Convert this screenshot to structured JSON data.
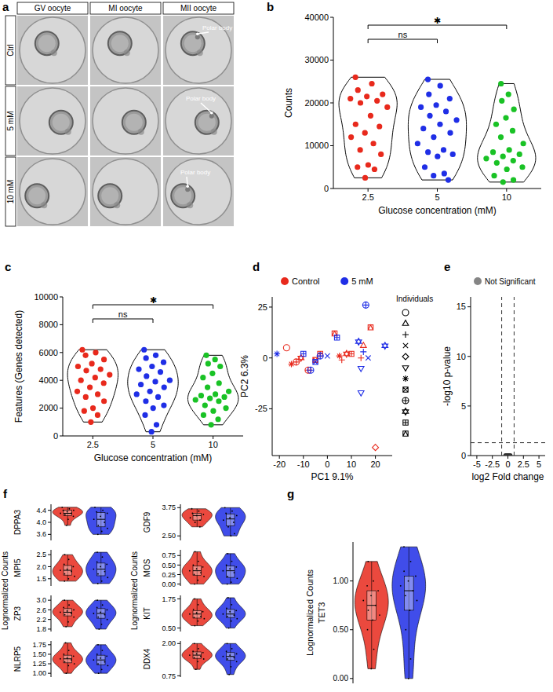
{
  "image_panel": {
    "title": "a",
    "columns": [
      "GV oocyte",
      "MI oocyte",
      "MII oocyte"
    ],
    "rows": [
      "Ctrl",
      "5 mM",
      "10 mM"
    ],
    "annotations": [
      "Polar body",
      "Polar body",
      "Polar body"
    ]
  },
  "chart_data": [
    {
      "type": "violin",
      "title": "b",
      "x_label": "Glucose concentration (mM)",
      "y_label": "Counts",
      "categories": [
        "2.5",
        "5",
        "10"
      ],
      "colors": [
        "#e8291c",
        "#1f2ee6",
        "#19c225"
      ],
      "values": [
        [
          26000,
          24500,
          23000,
          22000,
          21500,
          21000,
          20500,
          20000,
          19000,
          17000,
          15000,
          14500,
          13000,
          12000,
          10500,
          9000,
          8000,
          5500,
          5000,
          4500,
          2500
        ],
        [
          25500,
          24000,
          22000,
          21000,
          19500,
          19000,
          18000,
          17000,
          16000,
          15000,
          14000,
          13000,
          12000,
          10500,
          9000,
          8500,
          8000,
          7500,
          5000,
          3500,
          3000,
          2000
        ],
        [
          24500,
          22000,
          20500,
          18500,
          16500,
          15000,
          13500,
          12000,
          10500,
          9000,
          8500,
          8000,
          7500,
          7000,
          6500,
          6000,
          5000,
          4500,
          3000,
          2000,
          1500
        ]
      ],
      "ylim": [
        0,
        40000
      ],
      "yticks": [
        0,
        10000,
        20000,
        30000,
        40000
      ],
      "annotations": [
        {
          "text": "ns",
          "between": [
            "2.5",
            "5"
          ]
        },
        {
          "text": "✱",
          "between": [
            "2.5",
            "10"
          ]
        }
      ]
    },
    {
      "type": "violin",
      "title": "c",
      "x_label": "Glucose concentration (mM)",
      "y_label": "Features (Genes detected)",
      "categories": [
        "2.5",
        "5",
        "10"
      ],
      "colors": [
        "#e8291c",
        "#1f2ee6",
        "#19c225"
      ],
      "values": [
        [
          6200,
          6000,
          5800,
          5500,
          5200,
          5000,
          4800,
          4700,
          4400,
          4200,
          4000,
          3800,
          3500,
          3200,
          3000,
          2800,
          2500,
          2000,
          1800,
          1500,
          1000
        ],
        [
          6200,
          5800,
          5600,
          5300,
          5000,
          4800,
          4600,
          4300,
          4000,
          3900,
          3700,
          3500,
          3200,
          3000,
          2800,
          2500,
          2200,
          2000,
          1500,
          800,
          300
        ],
        [
          5800,
          5500,
          5200,
          5000,
          4500,
          4200,
          3800,
          3500,
          3200,
          3000,
          2900,
          2800,
          2700,
          2600,
          2500,
          2200,
          2000,
          1800,
          1500,
          1200,
          800
        ]
      ],
      "ylim": [
        0,
        10000
      ],
      "yticks": [
        0,
        2000,
        4000,
        6000,
        8000,
        10000
      ],
      "annotations": [
        {
          "text": "ns",
          "between": [
            "2.5",
            "5"
          ]
        },
        {
          "text": "✱",
          "between": [
            "2.5",
            "10"
          ]
        }
      ]
    },
    {
      "type": "scatter",
      "title": "d",
      "x_label": "PC1 9.1%",
      "y_label": "PC2 6.3%",
      "xlim": [
        -23,
        27
      ],
      "xticks": [
        -20,
        -10,
        0,
        10,
        20
      ],
      "ylim": [
        -48,
        30
      ],
      "yticks": [
        -25,
        0,
        25
      ],
      "legend": "top",
      "series": [
        {
          "name": "Control",
          "color": "#e8291c",
          "x": [
            -17,
            -15,
            -13,
            -11,
            -8,
            -5,
            -3,
            3,
            5,
            6,
            8,
            10,
            14,
            15,
            18,
            20
          ],
          "values": [
            5,
            -3,
            -2,
            0,
            -6,
            -1,
            2,
            12,
            1,
            -1,
            2,
            2,
            0,
            6,
            15,
            -44
          ],
          "markers": [
            "circle",
            "asterisk",
            "circle-plus",
            "star",
            "circle-plus",
            "square-cross",
            "square-plus",
            "square-triangle",
            "asterisk",
            "plus",
            "star",
            "square-plus",
            "plus",
            "triangle",
            "square-triangle",
            "diamond"
          ]
        },
        {
          "name": "5 mM",
          "color": "#1f2ee6",
          "x": [
            -21,
            -10,
            -7,
            -5,
            -3,
            0,
            4,
            13,
            14,
            14,
            15,
            16,
            17,
            24
          ],
          "values": [
            2,
            2,
            -6,
            -2,
            1,
            1,
            10,
            8,
            -5,
            -17,
            3,
            26,
            0,
            6
          ],
          "markers": [
            "asterisk",
            "square-plus",
            "circle-plus",
            "square-cross",
            "circle-plus",
            "cross",
            "square-plus",
            "star",
            "triangle-down",
            "triangle-down",
            "plus",
            "circle-plus",
            "cross",
            "star"
          ]
        }
      ],
      "individuals": {
        "title": "Individuals",
        "markers": [
          "circle",
          "triangle",
          "plus",
          "cross",
          "diamond",
          "triangle-down",
          "asterisk",
          "square-cross",
          "circle-plus",
          "star",
          "square-plus",
          "square-triangle"
        ]
      }
    },
    {
      "type": "scatter",
      "title": "e",
      "x_label": "log2 Fold change",
      "y_label": "-log10 p-value",
      "xlim": [
        -6,
        6
      ],
      "xticks": [
        -5,
        -2.5,
        0,
        2.5,
        5
      ],
      "ylim": [
        0,
        16
      ],
      "yticks": [
        0,
        5,
        10,
        15
      ],
      "legend": "top",
      "thresholds": {
        "x": [
          -1,
          1
        ],
        "y": 1.3
      },
      "series": [
        {
          "name": "Not Significant",
          "color": "#333333",
          "marker": "circle",
          "x": [
            -0.45,
            -0.38,
            -0.3,
            -0.22,
            -0.15,
            -0.08,
            0,
            0.08,
            0.15,
            0.22,
            0.3,
            0.38,
            0.45
          ],
          "values": [
            0.05,
            0.05,
            0.05,
            0.05,
            0.05,
            0.05,
            0.05,
            0.05,
            0.05,
            0.05,
            0.05,
            0.05,
            0.05
          ]
        }
      ]
    },
    {
      "type": "violin",
      "title": "f",
      "y_label": "DPPA3",
      "colors": [
        "#e8291c",
        "#1f2ee6"
      ],
      "values": [
        [
          4.5,
          4.45,
          4.4,
          4.4,
          4.35,
          4.3,
          4.3,
          4.25,
          4.2,
          4.1,
          3.9
        ],
        [
          4.5,
          4.4,
          4.35,
          4.3,
          4.2,
          4.1,
          4.0,
          3.9,
          3.8,
          3.7,
          3.6
        ]
      ],
      "ylim": [
        3.4,
        4.6
      ],
      "yticks": [
        3.6,
        {
          "value": 4,
          "label": "4.0"
        },
        4.4
      ]
    },
    {
      "type": "violin",
      "y_label": "GDF9",
      "colors": [
        "#e8291c",
        "#1f2ee6"
      ],
      "values": [
        [
          3.7,
          3.6,
          3.5,
          3.45,
          3.4,
          3.3,
          3.2,
          3.1,
          2.9
        ],
        [
          3.75,
          3.6,
          3.5,
          3.4,
          3.3,
          3.2,
          3.1,
          2.9,
          2.6,
          2.5
        ]
      ],
      "ylim": [
        2.3,
        3.9
      ],
      "yticks": [
        {
          "value": 2.5,
          "label": "2.50"
        },
        3.75
      ]
    },
    {
      "type": "violin",
      "y_label": "MPI5",
      "y_label_outer": "Lognormalized Counts",
      "colors": [
        "#e8291c",
        "#1f2ee6"
      ],
      "values": [
        [
          2.5,
          2.3,
          2.1,
          2.0,
          1.9,
          1.85,
          1.8,
          1.7,
          1.6,
          1.5,
          1.4
        ],
        [
          2.6,
          2.4,
          2.2,
          2.1,
          2.0,
          1.9,
          1.8,
          1.7,
          1.55,
          1.4,
          1.3
        ]
      ],
      "ylim": [
        1.2,
        2.7
      ],
      "yticks": [
        1.5,
        {
          "value": 2,
          "label": "2.0"
        },
        2.5
      ]
    },
    {
      "type": "violin",
      "y_label": "MOS",
      "y_label_outer": "Lognormalized Counts",
      "colors": [
        "#e8291c",
        "#1f2ee6"
      ],
      "values": [
        [
          0.85,
          0.6,
          0.5,
          0.45,
          0.4,
          0.35,
          0.3,
          0.25,
          0.2,
          0.1,
          0.0
        ],
        [
          0.8,
          0.6,
          0.5,
          0.45,
          0.4,
          0.35,
          0.3,
          0.2,
          0.15,
          0.05,
          0.0
        ]
      ],
      "ylim": [
        -0.05,
        0.9
      ],
      "yticks": [
        {
          "value": 0,
          "label": "0.00"
        },
        0.25,
        {
          "value": 0.5,
          "label": "0.50"
        },
        0.75
      ]
    },
    {
      "type": "violin",
      "y_label": "ZP3",
      "colors": [
        "#e8291c",
        "#1f2ee6"
      ],
      "values": [
        [
          3.0,
          2.8,
          2.7,
          2.6,
          2.55,
          2.5,
          2.45,
          2.4,
          2.3,
          2.1,
          1.9
        ],
        [
          3.0,
          2.8,
          2.7,
          2.6,
          2.5,
          2.45,
          2.4,
          2.3,
          2.2,
          2.0,
          1.8
        ]
      ],
      "ylim": [
        1.7,
        3.2
      ],
      "yticks": [
        1.8,
        2.2,
        2.6,
        {
          "value": 3,
          "label": "3.0"
        }
      ]
    },
    {
      "type": "violin",
      "y_label": "KIT",
      "colors": [
        "#e8291c",
        "#1f2ee6"
      ],
      "values": [
        [
          1.75,
          1.5,
          1.3,
          1.2,
          1.15,
          1.1,
          1.0,
          0.95,
          0.9,
          0.8,
          0.6
        ],
        [
          1.8,
          1.5,
          1.35,
          1.25,
          1.2,
          1.1,
          1.05,
          1.0,
          0.9,
          0.8,
          0.5
        ]
      ],
      "ylim": [
        0.35,
        1.9
      ],
      "yticks": [
        {
          "value": 0.5,
          "label": "0.50"
        },
        1.75
      ]
    },
    {
      "type": "violin",
      "y_label": "NLRP5",
      "colors": [
        "#e8291c",
        "#1f2ee6"
      ],
      "values": [
        [
          1.8,
          1.6,
          1.5,
          1.45,
          1.4,
          1.38,
          1.35,
          1.3,
          1.25,
          1.2,
          1.0
        ],
        [
          1.75,
          1.6,
          1.5,
          1.45,
          1.4,
          1.35,
          1.3,
          1.25,
          1.2,
          1.1,
          1.0
        ]
      ],
      "ylim": [
        0.9,
        1.85
      ],
      "yticks": [
        {
          "value": 1,
          "label": "1.00"
        },
        1.25,
        {
          "value": 1.5,
          "label": "1.50"
        },
        1.75
      ]
    },
    {
      "type": "violin",
      "y_label": "DDX4",
      "colors": [
        "#e8291c",
        "#1f2ee6"
      ],
      "values": [
        [
          2.0,
          1.8,
          1.7,
          1.65,
          1.6,
          1.55,
          1.5,
          1.45,
          1.4,
          1.3,
          1.0
        ],
        [
          2.0,
          1.8,
          1.7,
          1.6,
          1.55,
          1.5,
          1.45,
          1.4,
          1.3,
          1.1,
          0.8
        ]
      ],
      "ylim": [
        0.7,
        2.1
      ],
      "yticks": [
        0.75,
        {
          "value": 2,
          "label": "2.00"
        }
      ]
    },
    {
      "type": "violin",
      "title": "g",
      "y_label": "TET3",
      "y_label_outer": "Lognormalized Counts",
      "colors": [
        "#e8291c",
        "#1f2ee6"
      ],
      "values": [
        [
          1.2,
          1.0,
          0.95,
          0.9,
          0.85,
          0.8,
          0.75,
          0.7,
          0.65,
          0.6,
          0.5,
          0.3,
          0.1
        ],
        [
          1.35,
          1.2,
          1.1,
          1.05,
          1.0,
          0.95,
          0.9,
          0.85,
          0.8,
          0.7,
          0.5,
          0.2,
          0.0
        ]
      ],
      "ylim": [
        -0.05,
        1.4
      ],
      "yticks": [
        {
          "value": 0,
          "label": "0.00"
        },
        {
          "value": 0.5,
          "label": "0.50"
        },
        {
          "value": 1,
          "label": "1.00"
        }
      ]
    }
  ]
}
